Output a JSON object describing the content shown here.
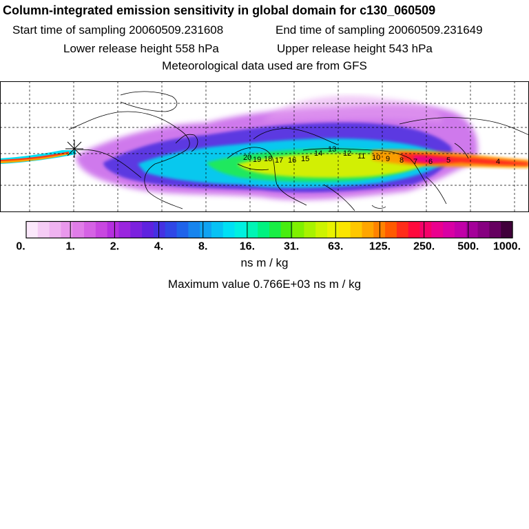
{
  "header": {
    "title": "Column-integrated emission sensitivity in global domain for c130_060509",
    "start_label": "Start time of sampling 20060509.231608",
    "end_label": "End time of sampling 20060509.231649",
    "lower_label": "Lower release height  558 hPa",
    "upper_label": "Upper release height  543 hPa",
    "met_label": "Meteorological data used are from GFS"
  },
  "map": {
    "trajectory_labels": [
      "20",
      "19",
      "18",
      "17",
      "16",
      "15",
      "14",
      "13",
      "12",
      "11",
      "10",
      "9",
      "8",
      "7",
      "6",
      "5",
      "4"
    ]
  },
  "colorbar": {
    "tick_labels": [
      "0.",
      "1.",
      "2.",
      "4.",
      "8.",
      "16.",
      "31.",
      "63.",
      "125.",
      "250.",
      "500.",
      "1000."
    ],
    "colors": [
      "#fbe8fb",
      "#f5ccf5",
      "#efb3f0",
      "#e998ec",
      "#e07de8",
      "#d562e4",
      "#c847e0",
      "#b52fdf",
      "#9a26de",
      "#7c22de",
      "#5f22df",
      "#4431e2",
      "#2f47e6",
      "#1f63ea",
      "#1784ee",
      "#0fa3f1",
      "#07c2f4",
      "#00e0f4",
      "#00f0e0",
      "#00f5b5",
      "#00f280",
      "#19ee45",
      "#48ed10",
      "#7ff000",
      "#a8f200",
      "#cdf300",
      "#e9f200",
      "#fbe400",
      "#ffc700",
      "#ffa500",
      "#ff8200",
      "#ff5a00",
      "#ff2d1a",
      "#ff0a3c",
      "#f5006a",
      "#ea008e",
      "#d800a4",
      "#c100a8",
      "#a40099",
      "#860080",
      "#660060",
      "#40003a"
    ]
  },
  "units_label": "ns m / kg",
  "max_label": "Maximum value  0.766E+03 ns m / kg"
}
